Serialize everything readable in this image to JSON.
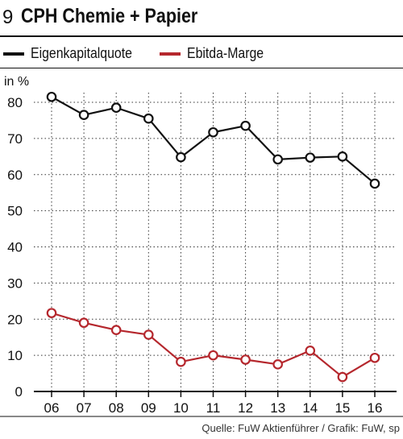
{
  "header": {
    "number": "9",
    "title": "CPH Chemie + Papier"
  },
  "source": "Quelle: FuW Aktienführer / Grafik: FuW, sp",
  "colors": {
    "series1": "#111111",
    "series2": "#b5272d",
    "grid": "#333333"
  },
  "chart_data": {
    "type": "line",
    "title": "CPH Chemie + Papier",
    "ylabel": "in %",
    "xlabel": "",
    "categories": [
      "06",
      "07",
      "08",
      "09",
      "10",
      "11",
      "12",
      "13",
      "14",
      "15",
      "16"
    ],
    "ylim": [
      0,
      80
    ],
    "yticks": [
      0,
      10,
      20,
      30,
      40,
      50,
      60,
      70,
      80
    ],
    "grid": "dotted",
    "legend": "top-left",
    "series": [
      {
        "name": "Eigenkapitalquote",
        "color": "#111111",
        "values": [
          81.5,
          76.5,
          78.5,
          75.5,
          64.8,
          71.7,
          73.5,
          64.2,
          64.7,
          65.0,
          57.5
        ]
      },
      {
        "name": "Ebitda-Marge",
        "color": "#b5272d",
        "values": [
          21.7,
          19.0,
          17.0,
          15.7,
          8.2,
          10.0,
          8.8,
          7.5,
          11.3,
          4.0,
          9.3
        ]
      }
    ]
  }
}
